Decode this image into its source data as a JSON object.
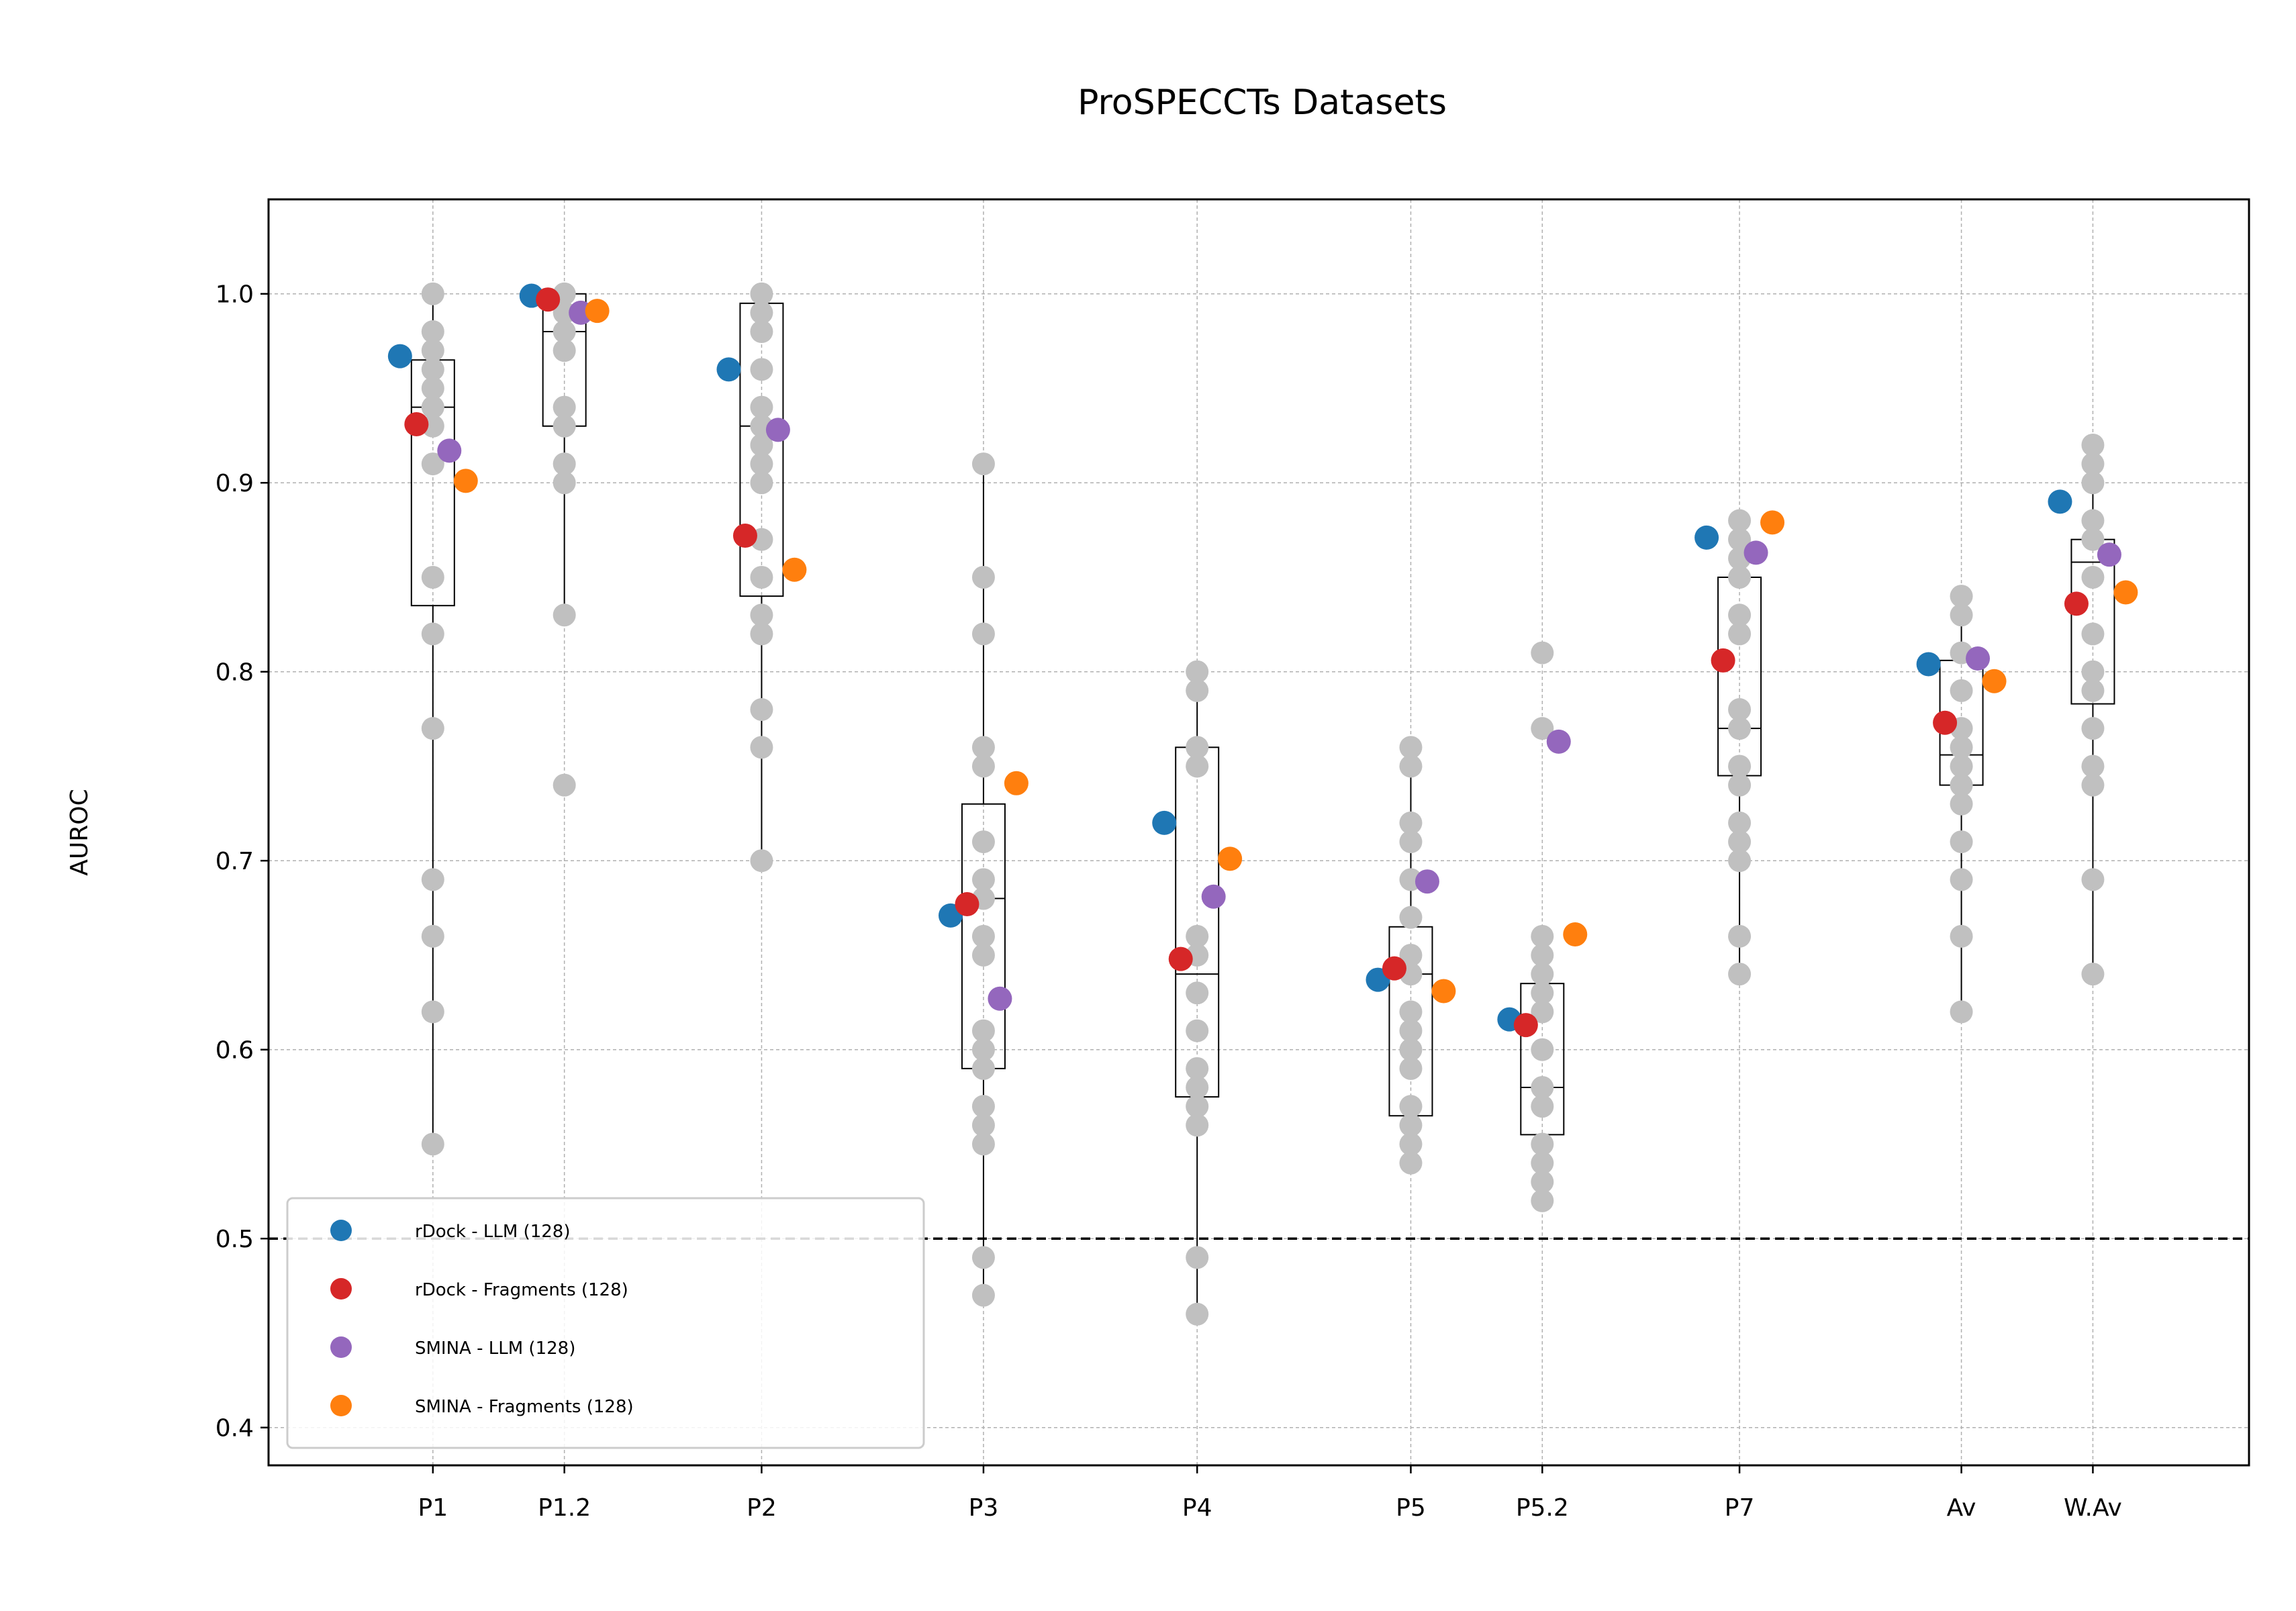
{
  "chart_data": {
    "type": "scatter",
    "title": "ProSPECCTs Datasets",
    "xlabel": "",
    "ylabel": "AUROC",
    "ylim": [
      0.38,
      1.05
    ],
    "yticks": [
      "0.4",
      "0.5",
      "0.6",
      "0.7",
      "0.8",
      "0.9",
      "1.0"
    ],
    "grid": true,
    "legend_position": "lower-left",
    "reference_line": 0.5,
    "categories": [
      "P1",
      "P1.2",
      "P2",
      "P3",
      "P4",
      "P5",
      "P5.2",
      "P7",
      "Av",
      "W.Av"
    ],
    "category_positions": [
      1,
      1.8,
      3,
      4.35,
      5.65,
      6.95,
      7.75,
      8.95,
      10.3,
      11.1
    ],
    "background_points": {
      "color": "#c0c0c0",
      "values": [
        [
          1.0,
          0.98,
          0.97,
          0.96,
          0.95,
          0.94,
          0.93,
          0.91,
          0.85,
          0.82,
          0.77,
          0.69,
          0.66,
          0.62,
          0.55
        ],
        [
          1.0,
          0.99,
          0.98,
          0.97,
          0.94,
          0.93,
          0.91,
          0.9,
          0.83,
          0.74
        ],
        [
          1.0,
          0.99,
          0.98,
          0.96,
          0.94,
          0.93,
          0.92,
          0.91,
          0.9,
          0.87,
          0.85,
          0.83,
          0.82,
          0.78,
          0.76,
          0.7
        ],
        [
          0.91,
          0.85,
          0.82,
          0.76,
          0.75,
          0.71,
          0.69,
          0.68,
          0.66,
          0.65,
          0.61,
          0.6,
          0.59,
          0.57,
          0.56,
          0.55,
          0.49,
          0.47
        ],
        [
          0.8,
          0.79,
          0.76,
          0.75,
          0.66,
          0.65,
          0.63,
          0.61,
          0.59,
          0.58,
          0.57,
          0.56,
          0.49,
          0.46
        ],
        [
          0.76,
          0.75,
          0.72,
          0.71,
          0.69,
          0.67,
          0.65,
          0.64,
          0.62,
          0.61,
          0.6,
          0.59,
          0.57,
          0.56,
          0.55,
          0.54
        ],
        [
          0.81,
          0.77,
          0.66,
          0.65,
          0.64,
          0.63,
          0.62,
          0.6,
          0.58,
          0.57,
          0.55,
          0.54,
          0.53,
          0.52
        ],
        [
          0.88,
          0.87,
          0.86,
          0.85,
          0.83,
          0.82,
          0.78,
          0.77,
          0.75,
          0.74,
          0.72,
          0.71,
          0.7,
          0.66,
          0.64
        ],
        [
          0.84,
          0.83,
          0.81,
          0.79,
          0.77,
          0.76,
          0.75,
          0.74,
          0.73,
          0.71,
          0.69,
          0.66,
          0.62
        ],
        [
          0.92,
          0.91,
          0.9,
          0.88,
          0.87,
          0.85,
          0.82,
          0.8,
          0.79,
          0.77,
          0.75,
          0.74,
          0.69,
          0.64
        ]
      ]
    },
    "boxes": [
      {
        "whisker_low": 0.55,
        "q1": 0.835,
        "median": 0.94,
        "q3": 0.965,
        "whisker_high": 1.0
      },
      {
        "whisker_low": 0.83,
        "q1": 0.93,
        "median": 0.98,
        "q3": 1.0,
        "whisker_high": 1.0
      },
      {
        "whisker_low": 0.7,
        "q1": 0.84,
        "median": 0.93,
        "q3": 0.995,
        "whisker_high": 1.0
      },
      {
        "whisker_low": 0.47,
        "q1": 0.59,
        "median": 0.68,
        "q3": 0.73,
        "whisker_high": 0.91
      },
      {
        "whisker_low": 0.46,
        "q1": 0.575,
        "median": 0.64,
        "q3": 0.76,
        "whisker_high": 0.8
      },
      {
        "whisker_low": 0.54,
        "q1": 0.565,
        "median": 0.64,
        "q3": 0.665,
        "whisker_high": 0.76
      },
      {
        "whisker_low": 0.52,
        "q1": 0.555,
        "median": 0.58,
        "q3": 0.635,
        "whisker_high": 0.66
      },
      {
        "whisker_low": 0.64,
        "q1": 0.745,
        "median": 0.77,
        "q3": 0.85,
        "whisker_high": 0.88
      },
      {
        "whisker_low": 0.62,
        "q1": 0.74,
        "median": 0.756,
        "q3": 0.806,
        "whisker_high": 0.84
      },
      {
        "whisker_low": 0.64,
        "q1": 0.783,
        "median": 0.858,
        "q3": 0.87,
        "whisker_high": 0.92
      }
    ],
    "series": [
      {
        "name": "rDock - LLM (128)",
        "color": "#1f77b4",
        "values": [
          0.967,
          0.999,
          0.96,
          0.671,
          0.72,
          0.637,
          0.616,
          0.871,
          0.804,
          0.89
        ]
      },
      {
        "name": "rDock - Fragments (128)",
        "color": "#d62728",
        "values": [
          0.931,
          0.997,
          0.872,
          0.677,
          0.648,
          0.643,
          0.613,
          0.806,
          0.773,
          0.836
        ]
      },
      {
        "name": "SMINA - LLM (128)",
        "color": "#9467bd",
        "values": [
          0.917,
          0.99,
          0.928,
          0.627,
          0.681,
          0.689,
          0.763,
          0.863,
          0.807,
          0.862
        ]
      },
      {
        "name": "SMINA - Fragments (128)",
        "color": "#ff7f0e",
        "values": [
          0.901,
          0.991,
          0.854,
          0.741,
          0.701,
          0.631,
          0.661,
          0.879,
          0.795,
          0.842
        ]
      }
    ]
  }
}
